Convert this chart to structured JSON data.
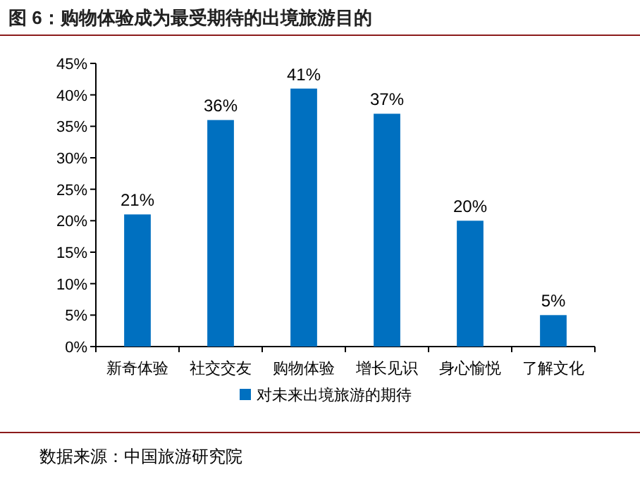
{
  "chart_data": {
    "type": "bar",
    "title": "图 6：购物体验成为最受期待的出境旅游目的",
    "categories": [
      "新奇体验",
      "社交交友",
      "购物体验",
      "增长见识",
      "身心愉悦",
      "了解文化"
    ],
    "series": [
      {
        "name": "对未来出境旅游的期待",
        "color": "#0070c0",
        "values": [
          21,
          36,
          41,
          37,
          20,
          5
        ],
        "value_labels": [
          "21%",
          "36%",
          "41%",
          "37%",
          "20%",
          "5%"
        ]
      }
    ],
    "ylim": [
      0,
      45
    ],
    "yticks": [
      {
        "value": 0,
        "label": "0%"
      },
      {
        "value": 5,
        "label": "5%"
      },
      {
        "value": 10,
        "label": "10%"
      },
      {
        "value": 15,
        "label": "15%"
      },
      {
        "value": 20,
        "label": "20%"
      },
      {
        "value": 25,
        "label": "25%"
      },
      {
        "value": 30,
        "label": "30%"
      },
      {
        "value": 35,
        "label": "35%"
      },
      {
        "value": 40,
        "label": "40%"
      },
      {
        "value": 45,
        "label": "45%"
      }
    ],
    "grid": false,
    "legend": "bottom",
    "annotations": [
      "数据来源：中国旅游研究院"
    ]
  }
}
